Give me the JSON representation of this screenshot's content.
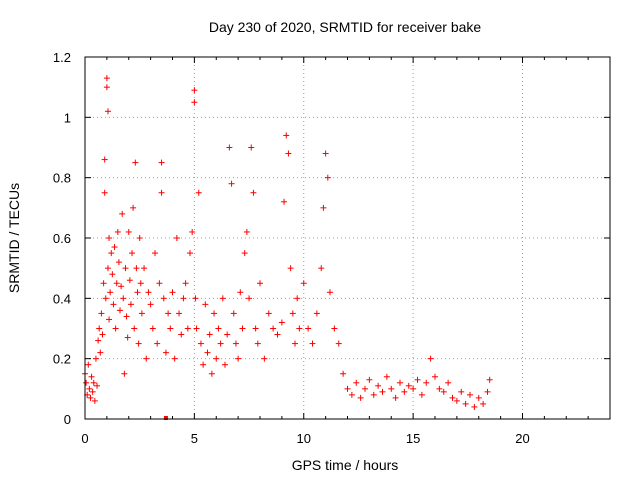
{
  "chart_data": {
    "type": "scatter",
    "title": "Day 230 of 2020, SRMTID for receiver bake",
    "xlabel": "GPS time / hours",
    "ylabel": "SRMTID / TECUs",
    "xlim": [
      0,
      24
    ],
    "ylim": [
      0,
      1.2
    ],
    "x_ticks": [
      0,
      5,
      10,
      15,
      20
    ],
    "x_tick_labels": [
      "0",
      "5",
      "10",
      "15",
      "20"
    ],
    "y_ticks": [
      0,
      0.2,
      0.4,
      0.6,
      0.8,
      1.0,
      1.2
    ],
    "y_tick_labels": [
      "0",
      "0.2",
      "0.4",
      "0.6",
      "0.8",
      "1",
      "1.2"
    ],
    "grid": true,
    "legend": "none",
    "marker": "+",
    "color": "#ff0000",
    "series": [
      {
        "name": "SRMTID",
        "points": [
          [
            0,
            0.15
          ],
          [
            0.05,
            0.12
          ],
          [
            0.1,
            0.08
          ],
          [
            0.15,
            0.18
          ],
          [
            0.2,
            0.1
          ],
          [
            0.25,
            0.07
          ],
          [
            0.3,
            0.14
          ],
          [
            0.35,
            0.09
          ],
          [
            0.4,
            0.12
          ],
          [
            0.45,
            0.06
          ],
          [
            0.5,
            0.2
          ],
          [
            0.55,
            0.11
          ],
          [
            0.6,
            0.26
          ],
          [
            0.65,
            0.3
          ],
          [
            0.7,
            0.22
          ],
          [
            0.75,
            0.35
          ],
          [
            0.8,
            0.28
          ],
          [
            0.85,
            0.45
          ],
          [
            0.9,
            0.75
          ],
          [
            0.9,
            0.86
          ],
          [
            0.95,
            0.4
          ],
          [
            1.0,
            1.1
          ],
          [
            1.0,
            1.13
          ],
          [
            1.05,
            1.02
          ],
          [
            1.05,
            0.5
          ],
          [
            1.1,
            0.33
          ],
          [
            1.1,
            0.6
          ],
          [
            1.15,
            0.42
          ],
          [
            1.2,
            0.55
          ],
          [
            1.25,
            0.48
          ],
          [
            1.3,
            0.38
          ],
          [
            1.35,
            0.57
          ],
          [
            1.4,
            0.3
          ],
          [
            1.45,
            0.45
          ],
          [
            1.5,
            0.62
          ],
          [
            1.55,
            0.52
          ],
          [
            1.6,
            0.36
          ],
          [
            1.65,
            0.44
          ],
          [
            1.7,
            0.68
          ],
          [
            1.75,
            0.4
          ],
          [
            1.8,
            0.15
          ],
          [
            1.85,
            0.5
          ],
          [
            1.9,
            0.34
          ],
          [
            1.95,
            0.27
          ],
          [
            2.0,
            0.62
          ],
          [
            2.05,
            0.46
          ],
          [
            2.1,
            0.38
          ],
          [
            2.15,
            0.55
          ],
          [
            2.2,
            0.7
          ],
          [
            2.25,
            0.3
          ],
          [
            2.3,
            0.85
          ],
          [
            2.35,
            0.5
          ],
          [
            2.4,
            0.42
          ],
          [
            2.45,
            0.25
          ],
          [
            2.5,
            0.6
          ],
          [
            2.55,
            0.45
          ],
          [
            2.6,
            0.35
          ],
          [
            2.7,
            0.5
          ],
          [
            2.8,
            0.2
          ],
          [
            2.9,
            0.42
          ],
          [
            3.0,
            0.38
          ],
          [
            3.1,
            0.3
          ],
          [
            3.2,
            0.55
          ],
          [
            3.3,
            0.25
          ],
          [
            3.4,
            0.45
          ],
          [
            3.5,
            0.85
          ],
          [
            3.5,
            0.75
          ],
          [
            3.6,
            0.4
          ],
          [
            3.7,
            0.22
          ],
          [
            3.8,
            0.35
          ],
          [
            3.9,
            0.3
          ],
          [
            4.0,
            0.42
          ],
          [
            4.1,
            0.2
          ],
          [
            4.2,
            0.6
          ],
          [
            4.3,
            0.35
          ],
          [
            4.4,
            0.28
          ],
          [
            4.5,
            0.4
          ],
          [
            4.6,
            0.45
          ],
          [
            4.7,
            0.3
          ],
          [
            4.8,
            0.55
          ],
          [
            4.9,
            0.62
          ],
          [
            5.0,
            1.05
          ],
          [
            5.0,
            1.09
          ],
          [
            5.05,
            0.4
          ],
          [
            5.1,
            0.3
          ],
          [
            5.2,
            0.75
          ],
          [
            5.3,
            0.25
          ],
          [
            5.4,
            0.18
          ],
          [
            5.5,
            0.38
          ],
          [
            5.6,
            0.22
          ],
          [
            5.7,
            0.28
          ],
          [
            5.8,
            0.15
          ],
          [
            5.9,
            0.35
          ],
          [
            6.0,
            0.2
          ],
          [
            6.1,
            0.3
          ],
          [
            6.2,
            0.25
          ],
          [
            6.3,
            0.4
          ],
          [
            6.4,
            0.18
          ],
          [
            6.5,
            0.28
          ],
          [
            6.6,
            0.9
          ],
          [
            6.7,
            0.78
          ],
          [
            6.8,
            0.35
          ],
          [
            6.9,
            0.25
          ],
          [
            7.0,
            0.2
          ],
          [
            7.1,
            0.42
          ],
          [
            7.2,
            0.3
          ],
          [
            7.3,
            0.55
          ],
          [
            7.4,
            0.62
          ],
          [
            7.5,
            0.4
          ],
          [
            7.6,
            0.9
          ],
          [
            7.7,
            0.75
          ],
          [
            7.8,
            0.3
          ],
          [
            7.9,
            0.25
          ],
          [
            8.0,
            0.45
          ],
          [
            8.2,
            0.2
          ],
          [
            8.4,
            0.35
          ],
          [
            8.6,
            0.3
          ],
          [
            8.8,
            0.28
          ],
          [
            9.0,
            0.32
          ],
          [
            9.1,
            0.72
          ],
          [
            9.2,
            0.94
          ],
          [
            9.3,
            0.88
          ],
          [
            9.4,
            0.5
          ],
          [
            9.5,
            0.35
          ],
          [
            9.6,
            0.25
          ],
          [
            9.7,
            0.4
          ],
          [
            9.8,
            0.3
          ],
          [
            10.0,
            0.45
          ],
          [
            10.2,
            0.3
          ],
          [
            10.4,
            0.25
          ],
          [
            10.6,
            0.35
          ],
          [
            10.8,
            0.5
          ],
          [
            10.9,
            0.7
          ],
          [
            11.0,
            0.88
          ],
          [
            11.1,
            0.8
          ],
          [
            11.2,
            0.42
          ],
          [
            11.4,
            0.3
          ],
          [
            11.6,
            0.25
          ],
          [
            11.8,
            0.15
          ],
          [
            12.0,
            0.1
          ],
          [
            12.2,
            0.08
          ],
          [
            12.4,
            0.12
          ],
          [
            12.6,
            0.07
          ],
          [
            12.8,
            0.1
          ],
          [
            13.0,
            0.13
          ],
          [
            13.2,
            0.08
          ],
          [
            13.4,
            0.11
          ],
          [
            13.6,
            0.09
          ],
          [
            13.8,
            0.14
          ],
          [
            14.0,
            0.1
          ],
          [
            14.2,
            0.07
          ],
          [
            14.4,
            0.12
          ],
          [
            14.6,
            0.09
          ],
          [
            14.8,
            0.11
          ],
          [
            15.0,
            0.1
          ],
          [
            15.2,
            0.13
          ],
          [
            15.4,
            0.08
          ],
          [
            15.6,
            0.12
          ],
          [
            15.8,
            0.2
          ],
          [
            16.0,
            0.14
          ],
          [
            16.2,
            0.1
          ],
          [
            16.4,
            0.09
          ],
          [
            16.6,
            0.12
          ],
          [
            16.8,
            0.07
          ],
          [
            17.0,
            0.06
          ],
          [
            17.2,
            0.09
          ],
          [
            17.4,
            0.05
          ],
          [
            17.6,
            0.08
          ],
          [
            17.8,
            0.04
          ],
          [
            18.0,
            0.07
          ],
          [
            18.2,
            0.05
          ],
          [
            18.4,
            0.09
          ],
          [
            18.5,
            0.13
          ]
        ]
      }
    ],
    "anomaly_point": {
      "x": 3.7,
      "y": 0.0
    }
  }
}
